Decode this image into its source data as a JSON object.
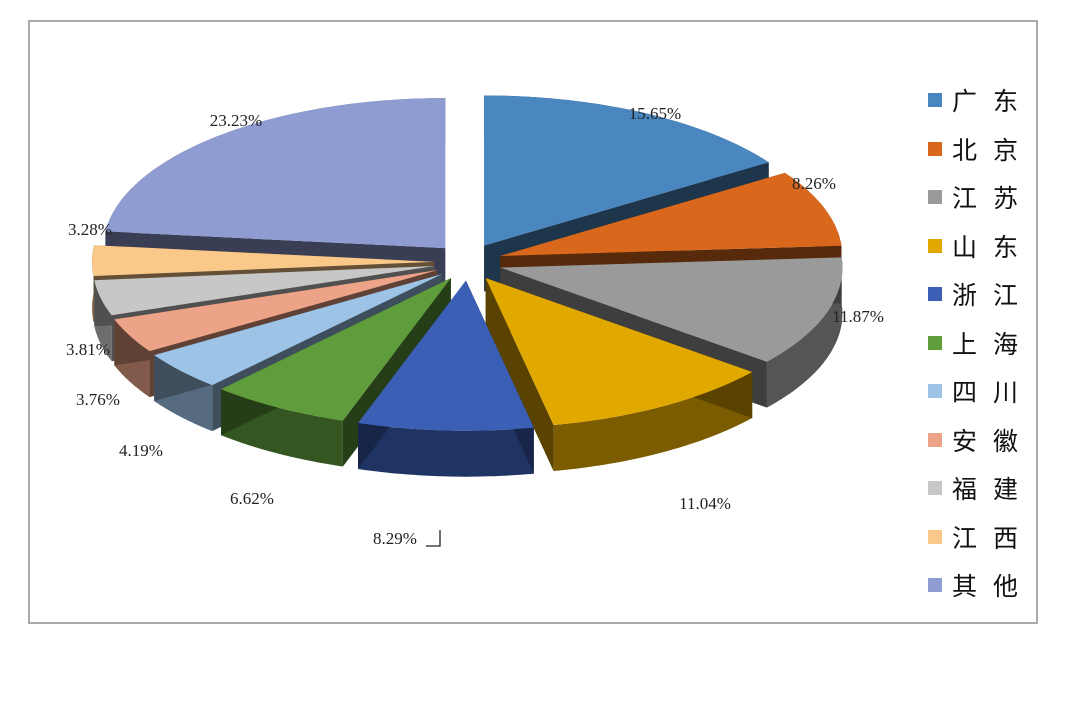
{
  "chart_data": {
    "type": "pie",
    "style": "exploded-3d",
    "legend_position": "right",
    "slices": [
      {
        "label": "广东",
        "value": 15.65,
        "value_label": "15.65%",
        "color": "#4A86BF"
      },
      {
        "label": "北京",
        "value": 8.26,
        "value_label": "8.26%",
        "color": "#D9681C"
      },
      {
        "label": "江苏",
        "value": 11.87,
        "value_label": "11.87%",
        "color": "#9A9A9A"
      },
      {
        "label": "山东",
        "value": 11.04,
        "value_label": "11.04%",
        "color": "#E1A800"
      },
      {
        "label": "浙江",
        "value": 8.29,
        "value_label": "8.29%",
        "color": "#3A5FB4"
      },
      {
        "label": "上海",
        "value": 6.62,
        "value_label": "6.62%",
        "color": "#5F9C3C"
      },
      {
        "label": "四川",
        "value": 4.19,
        "value_label": "4.19%",
        "color": "#9DC3E6"
      },
      {
        "label": "安徽",
        "value": 3.76,
        "value_label": "3.76%",
        "color": "#EDA388"
      },
      {
        "label": "福建",
        "value": 3.81,
        "value_label": "3.81%",
        "color": "#C7C7C7"
      },
      {
        "label": "江西",
        "value": 3.28,
        "value_label": "3.28%",
        "color": "#FAC98A"
      },
      {
        "label": "其他",
        "value": 23.23,
        "value_label": "23.23%",
        "color": "#8E9CD2"
      }
    ]
  }
}
